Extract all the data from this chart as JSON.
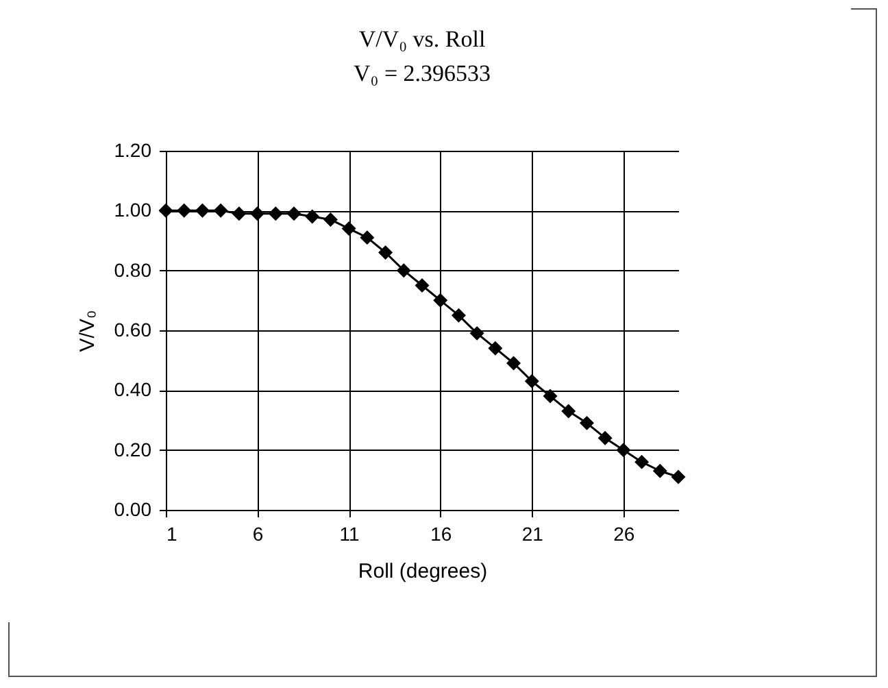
{
  "chart_data": {
    "type": "line",
    "title": "V/V₀  vs. Roll",
    "subtitle": "V₀ = 2.396533",
    "xlabel": "Roll (degrees)",
    "ylabel": "V/V₀",
    "x": [
      1,
      2,
      3,
      4,
      5,
      6,
      7,
      8,
      9,
      10,
      11,
      12,
      13,
      14,
      15,
      16,
      17,
      18,
      19,
      20,
      21,
      22,
      23,
      24,
      25,
      26,
      27,
      28,
      29
    ],
    "series": [
      {
        "color": "#000000",
        "values": [
          1.0,
          1.0,
          1.0,
          1.0,
          0.99,
          0.99,
          0.99,
          0.99,
          0.98,
          0.97,
          0.94,
          0.91,
          0.86,
          0.8,
          0.75,
          0.7,
          0.65,
          0.59,
          0.54,
          0.49,
          0.43,
          0.38,
          0.33,
          0.29,
          0.24,
          0.2,
          0.16,
          0.13,
          0.11
        ]
      }
    ],
    "xlim": [
      1,
      29
    ],
    "xticks": [
      1,
      6,
      11,
      16,
      21,
      26
    ],
    "ylim": [
      0,
      1.2
    ],
    "yticks": [
      {
        "value": 0,
        "label": "0.00"
      },
      {
        "value": 0.2,
        "label": "0.20"
      },
      {
        "value": 0.4,
        "label": "0.40"
      },
      {
        "value": 0.6,
        "label": "0.60"
      },
      {
        "value": 0.8,
        "label": "0.80"
      },
      {
        "value": 1,
        "label": "1.00"
      },
      {
        "value": 1.2,
        "label": "1.20"
      }
    ],
    "grid": true,
    "marker": "diamond",
    "line_style": "solid"
  }
}
